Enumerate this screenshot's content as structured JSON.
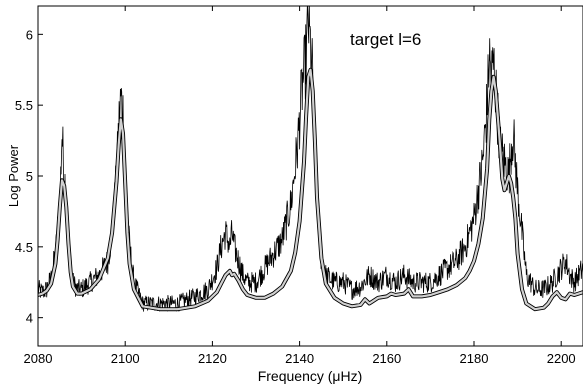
{
  "chart_data": {
    "type": "line",
    "title": "",
    "annotation": "target l=6",
    "xlabel": "Frequency (μHz)",
    "ylabel": "Log Power",
    "xlim": [
      2080,
      2205
    ],
    "ylim": [
      3.8,
      6.2
    ],
    "xticks": [
      2080,
      2100,
      2120,
      2140,
      2160,
      2180,
      2200
    ],
    "xtick_labels": [
      "2080",
      "2100",
      "2120",
      "2140",
      "2160",
      "2180",
      "2200"
    ],
    "yticks": [
      4,
      4.5,
      5,
      5.5,
      6
    ],
    "ytick_labels": [
      "4",
      "4.5",
      "5",
      "5.5",
      "6"
    ],
    "grid": false,
    "series": [
      {
        "role": "data",
        "color": "#000000",
        "x": [
          2080,
          2081,
          2082,
          2083,
          2084,
          2085,
          2085.5,
          2086,
          2086.5,
          2087,
          2088,
          2089,
          2090,
          2092,
          2094,
          2096,
          2097,
          2098,
          2098.5,
          2099,
          2099.5,
          2100,
          2101,
          2102,
          2104,
          2108,
          2112,
          2116,
          2119,
          2121,
          2122,
          2123,
          2124,
          2124.5,
          2125,
          2126,
          2127,
          2128,
          2130,
          2132,
          2134,
          2136,
          2138,
          2139.5,
          2140.5,
          2141.5,
          2142,
          2142.5,
          2143,
          2143.5,
          2144,
          2145,
          2146,
          2148,
          2150,
          2152,
          2154,
          2156,
          2158,
          2160,
          2162,
          2164,
          2166,
          2168,
          2170,
          2172,
          2174,
          2176,
          2178,
          2180,
          2181,
          2182,
          2183,
          2183.5,
          2184,
          2184.5,
          2185,
          2186,
          2187,
          2188,
          2188.5,
          2189,
          2189.5,
          2190,
          2191,
          2192,
          2194,
          2196,
          2198,
          2199,
          2200,
          2201,
          2202,
          2203,
          2204,
          2205
        ],
        "y": [
          4.2,
          4.18,
          4.2,
          4.28,
          4.45,
          4.8,
          5.3,
          5.0,
          4.9,
          4.45,
          4.25,
          4.2,
          4.2,
          4.25,
          4.3,
          4.4,
          4.6,
          5.0,
          5.35,
          5.55,
          5.45,
          5.0,
          4.5,
          4.25,
          4.1,
          4.1,
          4.1,
          4.15,
          4.2,
          4.35,
          4.5,
          4.6,
          4.5,
          4.6,
          4.5,
          4.4,
          4.3,
          4.25,
          4.25,
          4.35,
          4.45,
          4.55,
          4.8,
          5.2,
          5.6,
          5.85,
          6.1,
          5.9,
          5.7,
          5.2,
          4.8,
          4.4,
          4.3,
          4.25,
          4.25,
          4.2,
          4.22,
          4.3,
          4.25,
          4.3,
          4.25,
          4.3,
          4.25,
          4.25,
          4.25,
          4.3,
          4.35,
          4.4,
          4.5,
          4.7,
          4.9,
          5.1,
          5.5,
          5.85,
          5.7,
          5.8,
          5.6,
          5.2,
          5.1,
          5.0,
          5.2,
          5.3,
          5.1,
          4.9,
          4.6,
          4.3,
          4.2,
          4.2,
          4.25,
          4.3,
          4.35,
          4.4,
          4.3,
          4.25,
          4.3,
          4.35
        ]
      },
      {
        "role": "fit",
        "color": "#d0d0d0",
        "x": [
          2080,
          2081,
          2082,
          2083,
          2084,
          2084.5,
          2085,
          2085.5,
          2086,
          2086.5,
          2087,
          2087.5,
          2088,
          2089,
          2090,
          2092,
          2094,
          2096,
          2097,
          2098,
          2098.5,
          2099,
          2099.5,
          2100,
          2100.5,
          2101,
          2102,
          2104,
          2108,
          2112,
          2116,
          2119,
          2121,
          2122,
          2123,
          2124,
          2124.5,
          2125,
          2126,
          2127,
          2128,
          2130,
          2132,
          2134,
          2136,
          2138,
          2139,
          2140,
          2141,
          2141.5,
          2142,
          2142.5,
          2143,
          2143.5,
          2144,
          2145,
          2146,
          2148,
          2150,
          2152,
          2154,
          2155,
          2156,
          2158,
          2160,
          2161,
          2162,
          2164,
          2165,
          2166,
          2168,
          2170,
          2172,
          2174,
          2176,
          2178,
          2179,
          2180,
          2181,
          2182,
          2183,
          2183.5,
          2184,
          2184.5,
          2185,
          2186,
          2186.5,
          2187,
          2187.5,
          2188,
          2188.5,
          2189,
          2189.5,
          2190,
          2191,
          2192,
          2194,
          2196,
          2197,
          2198,
          2199,
          2200,
          2201,
          2202,
          2203,
          2204,
          2205
        ],
        "y": [
          4.16,
          4.17,
          4.19,
          4.24,
          4.38,
          4.55,
          4.78,
          4.97,
          4.93,
          4.78,
          4.52,
          4.32,
          4.22,
          4.17,
          4.17,
          4.2,
          4.27,
          4.42,
          4.6,
          4.96,
          5.22,
          5.4,
          5.3,
          4.95,
          4.6,
          4.38,
          4.2,
          4.08,
          4.06,
          4.06,
          4.08,
          4.12,
          4.18,
          4.24,
          4.3,
          4.33,
          4.3,
          4.31,
          4.26,
          4.2,
          4.16,
          4.14,
          4.14,
          4.17,
          4.22,
          4.33,
          4.46,
          4.68,
          5.1,
          5.42,
          5.7,
          5.75,
          5.6,
          5.25,
          4.85,
          4.42,
          4.24,
          4.14,
          4.1,
          4.08,
          4.09,
          4.13,
          4.1,
          4.14,
          4.15,
          4.17,
          4.16,
          4.17,
          4.2,
          4.15,
          4.15,
          4.16,
          4.18,
          4.2,
          4.23,
          4.28,
          4.33,
          4.4,
          4.52,
          4.7,
          5.05,
          5.4,
          5.6,
          5.7,
          5.6,
          5.2,
          4.98,
          4.9,
          4.95,
          5.0,
          4.95,
          4.85,
          4.7,
          4.45,
          4.2,
          4.1,
          4.06,
          4.07,
          4.1,
          4.15,
          4.18,
          4.14,
          4.13,
          4.17,
          4.16,
          4.17,
          4.18
        ]
      }
    ]
  }
}
